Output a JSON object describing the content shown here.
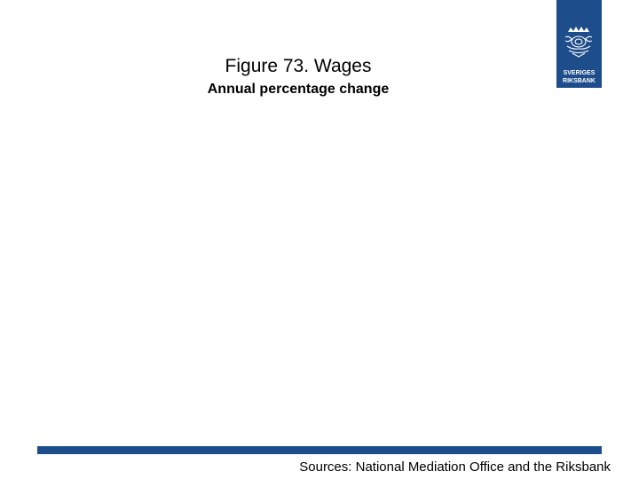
{
  "slide": {
    "title": "Figure 73. Wages",
    "subtitle": "Annual percentage change",
    "source": "Sources: National Mediation Office and the Riksbank"
  },
  "logo": {
    "icon": "riksbank-logo-icon",
    "line1": "SVERIGES",
    "line2": "RIKSBANK"
  },
  "colors": {
    "brand_blue": "#1e4d8c",
    "background": "#ffffff",
    "text": "#000000"
  }
}
